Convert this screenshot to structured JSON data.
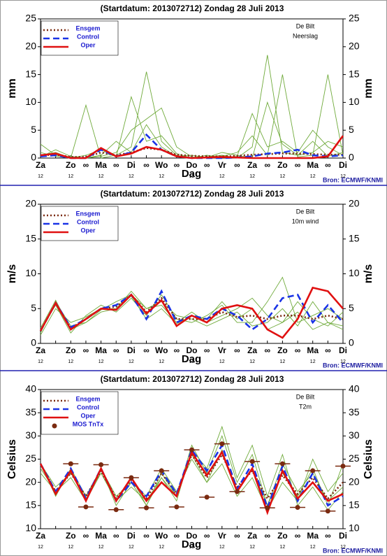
{
  "chart_data": [
    {
      "type": "line",
      "title": "(Startdatum: 2013072712)  Zondag   28 Juli    2013",
      "location": "De Bilt",
      "parameter": "Neerslag",
      "ylabel": "mm",
      "xlabel": "Dag",
      "source": "Bron: ECMWF/KNMI",
      "categories": [
        "Za",
        null,
        "Zo",
        "∞",
        "Ma",
        "∞",
        "Di",
        "∞",
        "Wo",
        "∞",
        "Do",
        "∞",
        "Vr",
        "∞",
        "Za",
        "∞",
        "Zo",
        "∞",
        "Ma",
        "∞",
        "Di"
      ],
      "hour_labels": [
        "12",
        null,
        "12",
        null,
        "12",
        null,
        "12",
        null,
        "12",
        null,
        "12",
        null,
        "12",
        null,
        "12",
        null,
        "12",
        null,
        "12",
        null,
        "12"
      ],
      "ylim": [
        0,
        25
      ],
      "yticks": [
        0,
        5,
        10,
        15,
        20,
        25
      ],
      "member_color": "#6faa3a",
      "members": [
        [
          0.5,
          1,
          0,
          9.5,
          0,
          0.5,
          2,
          15.5,
          3,
          0.5,
          0,
          0.2,
          0.5,
          0,
          2,
          18.5,
          1,
          0.5,
          3,
          0.3,
          1
        ],
        [
          2.5,
          0.5,
          0.2,
          0,
          0.3,
          1,
          5,
          7,
          9,
          2,
          0.2,
          0,
          0.3,
          1,
          4,
          0.5,
          15,
          0.2,
          0.5,
          15,
          0.5
        ],
        [
          1,
          0.3,
          0,
          0.5,
          1.5,
          0.2,
          11,
          3,
          4,
          0.8,
          0,
          0.5,
          0.1,
          0.3,
          8,
          2,
          3,
          1,
          5,
          2,
          0.5
        ],
        [
          0.2,
          1.5,
          0.3,
          0,
          0.5,
          3,
          1,
          6,
          2,
          0.3,
          0.5,
          0.1,
          1,
          0.5,
          0,
          10,
          2.5,
          0.5,
          1,
          3,
          2
        ]
      ],
      "series": [
        {
          "name": "Ensgem",
          "color": "#7a2a10",
          "dash": "dot",
          "values": [
            0.5,
            0.6,
            0.2,
            0.2,
            1,
            0.5,
            1,
            1.8,
            1.5,
            0.6,
            0.4,
            0.3,
            0.3,
            0.4,
            0.6,
            0.7,
            0.8,
            0.8,
            0.7,
            0.6,
            0.6
          ]
        },
        {
          "name": "Control",
          "color": "#1a33e6",
          "dash": "dash",
          "values": [
            0.3,
            0.5,
            0,
            0,
            1.5,
            0.3,
            1,
            4.2,
            1.5,
            0.3,
            0,
            0,
            0,
            0.1,
            0.3,
            0.8,
            1,
            1.5,
            0.5,
            0.3,
            0.5
          ]
        },
        {
          "name": "Oper",
          "color": "#e01010",
          "dash": "solid",
          "values": [
            0.5,
            0.8,
            0,
            0,
            1.8,
            0.3,
            0.8,
            2,
            1.5,
            0.3,
            0,
            0.1,
            0.2,
            0.1,
            0,
            0,
            0,
            0,
            0,
            0.3,
            4
          ]
        }
      ]
    },
    {
      "type": "line",
      "title": "(Startdatum: 2013072712)  Zondag   28 Juli    2013",
      "location": "De Bilt",
      "parameter": "10m wind",
      "ylabel": "m/s",
      "xlabel": "Dag",
      "source": "Bron: ECMWF/KNMI",
      "categories": [
        "Za",
        null,
        "Zo",
        "∞",
        "Ma",
        "∞",
        "Di",
        "∞",
        "Wo",
        "∞",
        "Do",
        "∞",
        "Vr",
        "∞",
        "Za",
        "∞",
        "Zo",
        "∞",
        "Ma",
        "∞",
        "Di"
      ],
      "hour_labels": [
        "12",
        null,
        "12",
        null,
        "12",
        null,
        "12",
        null,
        "12",
        null,
        "12",
        null,
        "12",
        null,
        "12",
        null,
        "12",
        null,
        "12",
        null,
        "12"
      ],
      "ylim": [
        0,
        20
      ],
      "yticks": [
        0,
        5,
        10,
        15,
        20
      ],
      "member_color": "#6faa3a",
      "members": [
        [
          1.5,
          6,
          2.5,
          3,
          4.5,
          5,
          7.5,
          5,
          5.5,
          3,
          4.5,
          3,
          4,
          5,
          6.5,
          4,
          3,
          4.5,
          2,
          3,
          2.5
        ],
        [
          2,
          5.5,
          1.5,
          4,
          5.5,
          4.5,
          6.5,
          4,
          7,
          3.5,
          3,
          4,
          5.5,
          3,
          3,
          6,
          9.5,
          3,
          4,
          5,
          3.5
        ],
        [
          2.2,
          6.2,
          2,
          3,
          4.8,
          6,
          7,
          5,
          6,
          4,
          3.5,
          2.5,
          3.5,
          4.5,
          2.5,
          3,
          5,
          2.5,
          6,
          3,
          2
        ],
        [
          1.2,
          5,
          3,
          3.8,
          5,
          5,
          6.8,
          3.5,
          5,
          2.8,
          4,
          3.5,
          6,
          3.5,
          5,
          2,
          3,
          6,
          3.5,
          2.5,
          4.5
        ]
      ],
      "series": [
        {
          "name": "Ensgem",
          "color": "#7a2a10",
          "dash": "dot",
          "values": [
            1.8,
            5.8,
            2.2,
            3.5,
            5,
            5.3,
            7,
            4.5,
            6.5,
            3.5,
            3.5,
            3.5,
            4.5,
            3.8,
            4,
            3.5,
            4,
            4,
            3.5,
            4,
            3.5
          ]
        },
        {
          "name": "Control",
          "color": "#1a33e6",
          "dash": "dash",
          "values": [
            1.8,
            5.8,
            2.3,
            3.5,
            5,
            5.5,
            7,
            3.5,
            7.5,
            3,
            4,
            3.5,
            5,
            4,
            2,
            3.5,
            6.5,
            7,
            3,
            5.5,
            3
          ]
        },
        {
          "name": "Oper",
          "color": "#e01010",
          "dash": "solid",
          "values": [
            1.8,
            5.8,
            2,
            3.5,
            5,
            4.8,
            7,
            4.3,
            6.2,
            2.5,
            4,
            3,
            5,
            5.5,
            5,
            2,
            0.8,
            3.5,
            8,
            7.5,
            5
          ]
        }
      ]
    },
    {
      "type": "line",
      "title": "(Startdatum: 2013072712)  Zondag   28 Juli    2013",
      "location": "De Bilt",
      "parameter": "T2m",
      "ylabel": "Celsius",
      "xlabel": "Dag",
      "source": "Bron: ECMWF/KNMI",
      "categories": [
        "Za",
        null,
        "Zo",
        "∞",
        "Ma",
        "∞",
        "Di",
        "∞",
        "Wo",
        "∞",
        "Do",
        "∞",
        "Vr",
        "∞",
        "Za",
        "∞",
        "Zo",
        "∞",
        "Ma",
        "∞",
        "Di"
      ],
      "hour_labels": [
        "12",
        null,
        "12",
        null,
        "12",
        null,
        "12",
        null,
        "12",
        null,
        "12",
        null,
        "12",
        null,
        "12",
        null,
        "12",
        null,
        "12",
        null,
        "12"
      ],
      "ylim": [
        10,
        40
      ],
      "yticks": [
        10,
        15,
        20,
        25,
        30,
        35,
        40
      ],
      "member_color": "#6faa3a",
      "members": [
        [
          23,
          18,
          22,
          17,
          22,
          16,
          21,
          15,
          21,
          17,
          28,
          22,
          30,
          20,
          26,
          15,
          24,
          18,
          22,
          16,
          19
        ],
        [
          24,
          17,
          23,
          17,
          23,
          17,
          20,
          17,
          23,
          18,
          25,
          20,
          24,
          17,
          21,
          14,
          20,
          16,
          25,
          18,
          22
        ],
        [
          22,
          18,
          21,
          16,
          22,
          16,
          19,
          16,
          21,
          16,
          27,
          23,
          32,
          21,
          28,
          17,
          26,
          15,
          19,
          14,
          18
        ],
        [
          24,
          19,
          22,
          17,
          23,
          15,
          20,
          15,
          22,
          17,
          26,
          20,
          27,
          18,
          23,
          15,
          22,
          17,
          23,
          15,
          24
        ]
      ],
      "series": [
        {
          "name": "Ensgem",
          "color": "#7a2a10",
          "dash": "dot",
          "values": [
            24,
            18,
            22,
            17,
            22.5,
            16.5,
            20.5,
            16.5,
            22,
            17.5,
            26,
            21,
            26,
            19,
            22.5,
            16.5,
            21.5,
            17.5,
            21,
            16.5,
            20
          ]
        },
        {
          "name": "Control",
          "color": "#1a33e6",
          "dash": "dash",
          "values": [
            24,
            18,
            23,
            16.5,
            23,
            16,
            20,
            17,
            22.5,
            17.5,
            27,
            22.5,
            28,
            18.5,
            24,
            14.5,
            23.5,
            16,
            22,
            15,
            17
          ]
        },
        {
          "name": "Oper",
          "color": "#e01010",
          "dash": "solid",
          "values": [
            24,
            17.5,
            22.5,
            16,
            23,
            16,
            21,
            16,
            20,
            17,
            26.5,
            21.5,
            26.5,
            18,
            23,
            13.5,
            22.5,
            16.5,
            20,
            16,
            17.5
          ]
        }
      ],
      "points": {
        "name": "MOS TnTx",
        "color": "#7a2a10",
        "values": [
          null,
          null,
          24,
          14.7,
          23.8,
          14.1,
          21,
          14.5,
          22.5,
          14.7,
          27,
          16.8,
          28.3,
          18,
          24.5,
          14.5,
          24,
          14.6,
          22.5,
          13.8,
          23.5
        ]
      }
    }
  ]
}
